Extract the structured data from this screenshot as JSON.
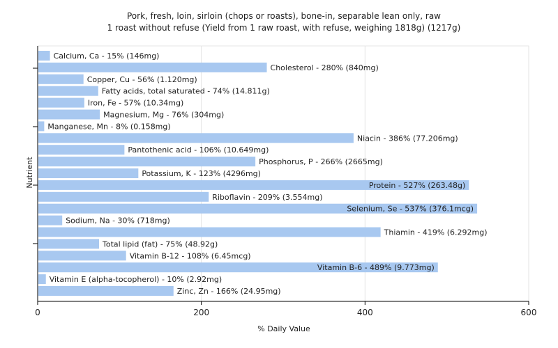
{
  "chart_data": {
    "type": "bar",
    "orientation": "horizontal",
    "title": "Pork, fresh, loin, sirloin (chops or roasts), bone-in, separable lean only, raw",
    "subtitle": "1 roast without refuse (Yield from 1 raw roast, with refuse, weighing 1818g) (1217g)",
    "xlabel": "% Daily Value",
    "ylabel": "Nutrient",
    "xlim": [
      0,
      600
    ],
    "xticks": [
      0,
      200,
      400,
      600
    ],
    "grid": true,
    "bar_color": "#a8c8f0",
    "categories": [
      "Calcium, Ca",
      "Cholesterol",
      "Copper, Cu",
      "Fatty acids, total saturated",
      "Iron, Fe",
      "Magnesium, Mg",
      "Manganese, Mn",
      "Niacin",
      "Pantothenic acid",
      "Phosphorus, P",
      "Potassium, K",
      "Protein",
      "Riboflavin",
      "Selenium, Se",
      "Sodium, Na",
      "Thiamin",
      "Total lipid (fat)",
      "Vitamin B-12",
      "Vitamin B-6",
      "Vitamin E (alpha-tocopherol)",
      "Zinc, Zn"
    ],
    "values": [
      15,
      280,
      56,
      74,
      57,
      76,
      8,
      386,
      106,
      266,
      123,
      527,
      209,
      537,
      30,
      419,
      75,
      108,
      489,
      10,
      166
    ],
    "labels": [
      "Calcium, Ca - 15% (146mg)",
      "Cholesterol - 280% (840mg)",
      "Copper, Cu - 56% (1.120mg)",
      "Fatty acids, total saturated - 74% (14.811g)",
      "Iron, Fe - 57% (10.34mg)",
      "Magnesium, Mg - 76% (304mg)",
      "Manganese, Mn - 8% (0.158mg)",
      "Niacin - 386% (77.206mg)",
      "Pantothenic acid - 106% (10.649mg)",
      "Phosphorus, P - 266% (2665mg)",
      "Potassium, K - 123% (4296mg)",
      "Protein - 527% (263.48g)",
      "Riboflavin - 209% (3.554mg)",
      "Selenium, Se - 537% (376.1mcg)",
      "Sodium, Na - 30% (718mg)",
      "Thiamin - 419% (6.292mg)",
      "Total lipid (fat) - 75% (48.92g)",
      "Vitamin B-12 - 108% (6.45mcg)",
      "Vitamin B-6 - 489% (9.773mg)",
      "Vitamin E (alpha-tocopherol) - 10% (2.92mg)",
      "Zinc, Zn - 166% (24.95mg)"
    ]
  }
}
